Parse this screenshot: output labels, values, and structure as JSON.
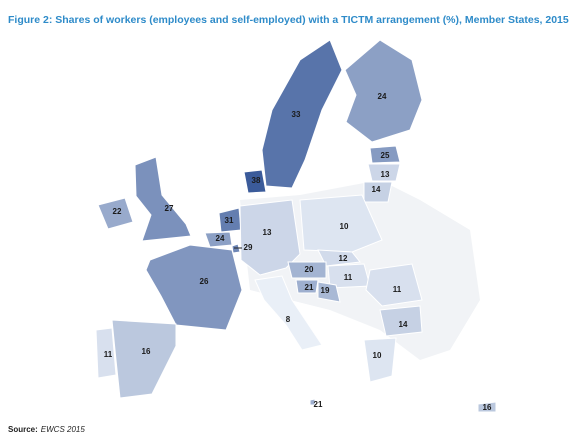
{
  "map_data": {
    "type": "choropleth",
    "title": "Figure 2: Shares of workers (employees and self-employed) with a TICTM arrangement (%), Member States, 2015",
    "source_label": "Source:",
    "source_text": "EWCS 2015",
    "values": [
      33,
      24,
      38,
      25,
      13,
      14,
      22,
      27,
      31,
      24,
      29,
      13,
      10,
      12,
      20,
      11,
      21,
      19,
      26,
      8,
      11,
      14,
      16,
      11,
      10,
      21,
      16
    ],
    "color_low": "#e9eff7",
    "color_high": "#3b5b9a"
  }
}
